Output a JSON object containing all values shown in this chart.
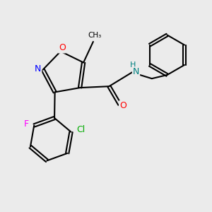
{
  "bg_color": "#ebebeb",
  "bond_color": "#000000",
  "bond_width": 1.5,
  "atom_colors": {
    "O": "#ff0000",
    "N": "#0000ff",
    "NH": "#008080",
    "H": "#008080",
    "F": "#ff00ff",
    "Cl": "#00aa00"
  },
  "font_size": 9
}
